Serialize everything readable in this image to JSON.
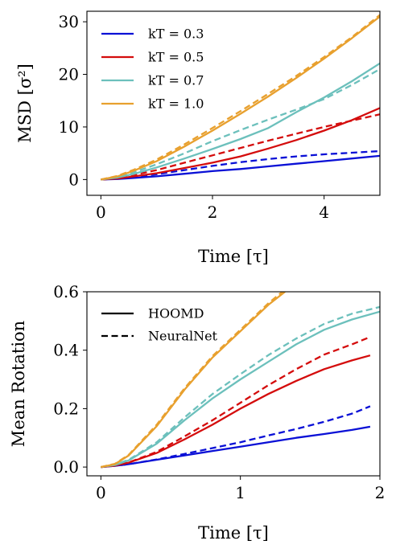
{
  "chart_data": [
    {
      "type": "line",
      "xlabel": "Time [τ]",
      "ylabel": "MSD [σ²]",
      "xlim": [
        -0.25,
        5
      ],
      "ylim": [
        -3,
        32
      ],
      "xticks": [
        0,
        2,
        4
      ],
      "yticks": [
        0,
        10,
        20,
        30
      ],
      "legend_position": "top-left",
      "series": [
        {
          "name": "kT = 0.3",
          "color": "#0a10d6",
          "style": "solid",
          "x": [
            0,
            0.3,
            0.6,
            1.0,
            1.5,
            2.0,
            2.5,
            3.0,
            3.5,
            4.0,
            4.5,
            5.0
          ],
          "y": [
            0,
            0.1,
            0.3,
            0.6,
            1.1,
            1.6,
            2.0,
            2.5,
            3.0,
            3.5,
            4.0,
            4.5
          ]
        },
        {
          "name": "kT = 0.3",
          "color": "#0a10d6",
          "style": "dashed",
          "x": [
            0,
            0.3,
            0.6,
            1.0,
            1.5,
            2.0,
            2.5,
            3.0,
            3.5,
            4.0,
            4.5,
            5.0
          ],
          "y": [
            0,
            0.2,
            0.5,
            1.0,
            1.8,
            2.6,
            3.3,
            3.9,
            4.4,
            4.8,
            5.1,
            5.4
          ]
        },
        {
          "name": "kT = 0.5",
          "color": "#d40c0c",
          "style": "solid",
          "x": [
            0,
            0.3,
            0.6,
            1.0,
            1.5,
            2.0,
            2.5,
            3.0,
            3.5,
            4.0,
            4.5,
            5.0
          ],
          "y": [
            0,
            0.2,
            0.6,
            1.2,
            2.2,
            3.2,
            4.4,
            5.9,
            7.5,
            9.3,
            11.3,
            13.6
          ]
        },
        {
          "name": "kT = 0.5",
          "color": "#d40c0c",
          "style": "dashed",
          "x": [
            0,
            0.3,
            0.6,
            1.0,
            1.5,
            2.0,
            2.5,
            3.0,
            3.5,
            4.0,
            4.5,
            5.0
          ],
          "y": [
            0,
            0.3,
            0.9,
            1.8,
            3.2,
            4.6,
            6.0,
            7.4,
            8.7,
            10.0,
            11.2,
            12.4
          ]
        },
        {
          "name": "kT = 0.7",
          "color": "#6cc0bc",
          "style": "solid",
          "x": [
            0,
            0.3,
            0.6,
            1.0,
            1.5,
            2.0,
            2.5,
            3.0,
            3.5,
            4.0,
            4.5,
            5.0
          ],
          "y": [
            0,
            0.4,
            1.1,
            2.3,
            4.0,
            5.8,
            7.7,
            9.8,
            12.8,
            15.6,
            18.7,
            22.1
          ]
        },
        {
          "name": "kT = 0.7",
          "color": "#6cc0bc",
          "style": "dashed",
          "x": [
            0,
            0.3,
            0.6,
            1.0,
            1.5,
            2.0,
            2.5,
            3.0,
            3.5,
            4.0,
            4.5,
            5.0
          ],
          "y": [
            0,
            0.5,
            1.4,
            2.9,
            5.0,
            7.3,
            9.4,
            11.4,
            13.3,
            15.3,
            18.0,
            21.0
          ]
        },
        {
          "name": "kT = 1.0",
          "color": "#e8a02e",
          "style": "solid",
          "x": [
            0,
            0.3,
            0.6,
            1.0,
            1.5,
            2.0,
            2.5,
            3.0,
            3.5,
            4.0,
            4.5,
            5.0
          ],
          "y": [
            0,
            0.6,
            1.7,
            3.5,
            6.3,
            9.3,
            12.5,
            15.8,
            19.3,
            23.0,
            26.9,
            31.0
          ]
        },
        {
          "name": "kT = 1.0",
          "color": "#e8a02e",
          "style": "dashed",
          "x": [
            0,
            0.3,
            0.6,
            1.0,
            1.5,
            2.0,
            2.5,
            3.0,
            3.5,
            4.0,
            4.5,
            5.0
          ],
          "y": [
            0,
            0.7,
            1.9,
            3.8,
            6.7,
            9.8,
            13.0,
            16.3,
            19.7,
            23.3,
            27.1,
            31.3
          ]
        }
      ],
      "legend": [
        {
          "label": "kT = 0.3",
          "color": "#0a10d6",
          "style": "solid"
        },
        {
          "label": "kT = 0.5",
          "color": "#d40c0c",
          "style": "solid"
        },
        {
          "label": "kT = 0.7",
          "color": "#6cc0bc",
          "style": "solid"
        },
        {
          "label": "kT = 1.0",
          "color": "#e8a02e",
          "style": "solid"
        }
      ]
    },
    {
      "type": "line",
      "xlabel": "Time [τ]",
      "ylabel": "Mean Rotation",
      "xlim": [
        -0.1,
        2
      ],
      "ylim": [
        -0.03,
        0.6
      ],
      "xticks": [
        0,
        1,
        2
      ],
      "yticks": [
        0.0,
        0.2,
        0.4,
        0.6
      ],
      "ytick_labels": [
        "0.0",
        "0.2",
        "0.4",
        "0.6"
      ],
      "legend_position": "top-left",
      "series": [
        {
          "color": "#0a10d6",
          "style": "solid",
          "x": [
            0,
            0.1,
            0.2,
            0.4,
            0.6,
            0.8,
            1.0,
            1.2,
            1.4,
            1.6,
            1.8,
            1.93
          ],
          "y": [
            0,
            0.004,
            0.01,
            0.025,
            0.04,
            0.055,
            0.07,
            0.085,
            0.1,
            0.113,
            0.127,
            0.138
          ]
        },
        {
          "color": "#0a10d6",
          "style": "dashed",
          "x": [
            0,
            0.1,
            0.2,
            0.4,
            0.6,
            0.8,
            1.0,
            1.2,
            1.4,
            1.6,
            1.8,
            1.93
          ],
          "y": [
            0,
            0.004,
            0.01,
            0.026,
            0.045,
            0.065,
            0.085,
            0.108,
            0.13,
            0.155,
            0.183,
            0.208
          ]
        },
        {
          "color": "#d40c0c",
          "style": "solid",
          "x": [
            0,
            0.1,
            0.2,
            0.4,
            0.6,
            0.8,
            1.0,
            1.2,
            1.4,
            1.6,
            1.8,
            1.93
          ],
          "y": [
            0,
            0.005,
            0.015,
            0.048,
            0.095,
            0.145,
            0.2,
            0.25,
            0.295,
            0.335,
            0.365,
            0.382
          ]
        },
        {
          "color": "#d40c0c",
          "style": "dashed",
          "x": [
            0,
            0.1,
            0.2,
            0.4,
            0.6,
            0.8,
            1.0,
            1.2,
            1.4,
            1.6,
            1.8,
            1.93
          ],
          "y": [
            0,
            0.005,
            0.016,
            0.052,
            0.105,
            0.16,
            0.22,
            0.28,
            0.335,
            0.385,
            0.42,
            0.445
          ]
        },
        {
          "color": "#6cc0bc",
          "style": "solid",
          "x": [
            0,
            0.1,
            0.2,
            0.4,
            0.6,
            0.8,
            1.0,
            1.2,
            1.4,
            1.6,
            1.8,
            2.0
          ],
          "y": [
            0,
            0.007,
            0.023,
            0.08,
            0.16,
            0.235,
            0.3,
            0.36,
            0.42,
            0.47,
            0.505,
            0.532
          ]
        },
        {
          "color": "#6cc0bc",
          "style": "dashed",
          "x": [
            0,
            0.1,
            0.2,
            0.4,
            0.6,
            0.8,
            1.0,
            1.2,
            1.4,
            1.6,
            1.8,
            2.0
          ],
          "y": [
            0,
            0.008,
            0.025,
            0.085,
            0.17,
            0.25,
            0.318,
            0.383,
            0.44,
            0.49,
            0.525,
            0.548
          ]
        },
        {
          "color": "#e8a02e",
          "style": "solid",
          "x": [
            0,
            0.1,
            0.2,
            0.4,
            0.6,
            0.8,
            1.0,
            1.2,
            1.32
          ],
          "y": [
            0,
            0.01,
            0.04,
            0.14,
            0.265,
            0.375,
            0.465,
            0.555,
            0.6
          ]
        },
        {
          "color": "#e8a02e",
          "style": "dashed",
          "x": [
            0,
            0.1,
            0.2,
            0.4,
            0.6,
            0.8,
            1.0,
            1.2,
            1.3
          ],
          "y": [
            0,
            0.011,
            0.042,
            0.145,
            0.27,
            0.38,
            0.47,
            0.56,
            0.6
          ]
        }
      ],
      "legend": [
        {
          "label": "HOOMD",
          "color": "#000000",
          "style": "solid"
        },
        {
          "label": "NeuralNet",
          "color": "#000000",
          "style": "dashed"
        }
      ]
    }
  ]
}
